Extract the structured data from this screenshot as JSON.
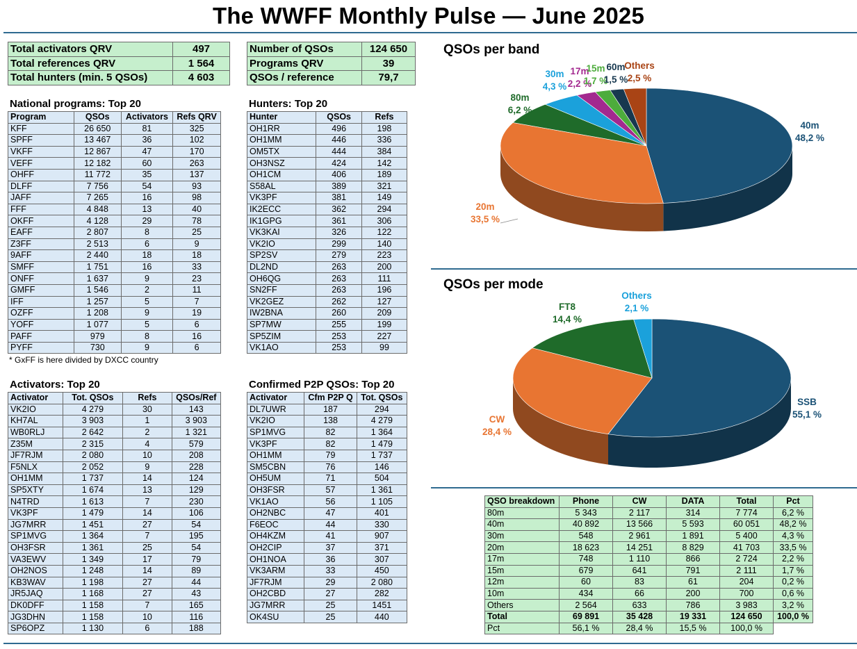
{
  "title": "The WWFF Monthly Pulse — June 2025",
  "summary_left": [
    {
      "label": "Total activators QRV",
      "value": "497"
    },
    {
      "label": "Total references QRV",
      "value": "1 564"
    },
    {
      "label": "Total hunters (min. 5 QSOs)",
      "value": "4 603"
    }
  ],
  "summary_right": [
    {
      "label": "Number of QSOs",
      "value": "124 650"
    },
    {
      "label": "Programs QRV",
      "value": "39"
    },
    {
      "label": "QSOs / reference",
      "value": "79,7"
    }
  ],
  "national": {
    "title": "National programs: Top 20",
    "headers": [
      "Program",
      "QSOs",
      "Activators",
      "Refs QRV"
    ],
    "rows": [
      [
        "KFF",
        "26 650",
        "81",
        "325"
      ],
      [
        "SPFF",
        "13 467",
        "36",
        "102"
      ],
      [
        "VKFF",
        "12 867",
        "47",
        "170"
      ],
      [
        "VEFF",
        "12 182",
        "60",
        "263"
      ],
      [
        "OHFF",
        "11 772",
        "35",
        "137"
      ],
      [
        "DLFF",
        "7 756",
        "54",
        "93"
      ],
      [
        "JAFF",
        "7 265",
        "16",
        "98"
      ],
      [
        "FFF",
        "4 848",
        "13",
        "40"
      ],
      [
        "OKFF",
        "4 128",
        "29",
        "78"
      ],
      [
        "EAFF",
        "2 807",
        "8",
        "25"
      ],
      [
        "Z3FF",
        "2 513",
        "6",
        "9"
      ],
      [
        "9AFF",
        "2 440",
        "18",
        "18"
      ],
      [
        "SMFF",
        "1 751",
        "16",
        "33"
      ],
      [
        "ONFF",
        "1 637",
        "9",
        "23"
      ],
      [
        "GMFF",
        "1 546",
        "2",
        "11"
      ],
      [
        "IFF",
        "1 257",
        "5",
        "7"
      ],
      [
        "OZFF",
        "1 208",
        "9",
        "19"
      ],
      [
        "YOFF",
        "1 077",
        "5",
        "6"
      ],
      [
        "PAFF",
        "979",
        "8",
        "16"
      ],
      [
        "PYFF",
        "730",
        "9",
        "6"
      ]
    ],
    "note": "* GxFF is here divided by DXCC country"
  },
  "hunters": {
    "title": "Hunters: Top 20",
    "headers": [
      "Hunter",
      "QSOs",
      "Refs"
    ],
    "rows": [
      [
        "OH1RR",
        "496",
        "198"
      ],
      [
        "OH1MM",
        "446",
        "336"
      ],
      [
        "OM5TX",
        "444",
        "384"
      ],
      [
        "OH3NSZ",
        "424",
        "142"
      ],
      [
        "OH1CM",
        "406",
        "189"
      ],
      [
        "S58AL",
        "389",
        "321"
      ],
      [
        "VK3PF",
        "381",
        "149"
      ],
      [
        "IK2ECC",
        "362",
        "294"
      ],
      [
        "IK1GPG",
        "361",
        "306"
      ],
      [
        "VK3KAI",
        "326",
        "122"
      ],
      [
        "VK2IO",
        "299",
        "140"
      ],
      [
        "SP2SV",
        "279",
        "223"
      ],
      [
        "DL2ND",
        "263",
        "200"
      ],
      [
        "OH6QG",
        "263",
        "111"
      ],
      [
        "SN2FF",
        "263",
        "196"
      ],
      [
        "VK2GEZ",
        "262",
        "127"
      ],
      [
        "IW2BNA",
        "260",
        "209"
      ],
      [
        "SP7MW",
        "255",
        "199"
      ],
      [
        "SP5ZIM",
        "253",
        "227"
      ],
      [
        "VK1AO",
        "253",
        "99"
      ]
    ]
  },
  "activators": {
    "title": "Activators: Top 20",
    "headers": [
      "Activator",
      "Tot. QSOs",
      "Refs",
      "QSOs/Ref"
    ],
    "rows": [
      [
        "VK2IO",
        "4 279",
        "30",
        "143"
      ],
      [
        "KH7AL",
        "3 903",
        "1",
        "3 903"
      ],
      [
        "WB0RLJ",
        "2 642",
        "2",
        "1 321"
      ],
      [
        "Z35M",
        "2 315",
        "4",
        "579"
      ],
      [
        "JF7RJM",
        "2 080",
        "10",
        "208"
      ],
      [
        "F5NLX",
        "2 052",
        "9",
        "228"
      ],
      [
        "OH1MM",
        "1 737",
        "14",
        "124"
      ],
      [
        "SP5XTY",
        "1 674",
        "13",
        "129"
      ],
      [
        "N4TRD",
        "1 613",
        "7",
        "230"
      ],
      [
        "VK3PF",
        "1 479",
        "14",
        "106"
      ],
      [
        "JG7MRR",
        "1 451",
        "27",
        "54"
      ],
      [
        "SP1MVG",
        "1 364",
        "7",
        "195"
      ],
      [
        "OH3FSR",
        "1 361",
        "25",
        "54"
      ],
      [
        "VA3EWV",
        "1 349",
        "17",
        "79"
      ],
      [
        "OH2NOS",
        "1 248",
        "14",
        "89"
      ],
      [
        "KB3WAV",
        "1 198",
        "27",
        "44"
      ],
      [
        "JR5JAQ",
        "1 168",
        "27",
        "43"
      ],
      [
        "DK0DFF",
        "1 158",
        "7",
        "165"
      ],
      [
        "JG3DHN",
        "1 158",
        "10",
        "116"
      ],
      [
        "SP6OPZ",
        "1 130",
        "6",
        "188"
      ]
    ]
  },
  "p2p": {
    "title": "Confirmed P2P QSOs: Top 20",
    "headers": [
      "Activator",
      "Cfm P2P Q",
      "Tot. QSOs"
    ],
    "rows": [
      [
        "DL7UWR",
        "187",
        "294"
      ],
      [
        "VK2IO",
        "138",
        "4 279"
      ],
      [
        "SP1MVG",
        "82",
        "1 364"
      ],
      [
        "VK3PF",
        "82",
        "1 479"
      ],
      [
        "OH1MM",
        "79",
        "1 737"
      ],
      [
        "SM5CBN",
        "76",
        "146"
      ],
      [
        "OH5UM",
        "71",
        "504"
      ],
      [
        "OH3FSR",
        "57",
        "1 361"
      ],
      [
        "VK1AO",
        "56",
        "1 105"
      ],
      [
        "OH2NBC",
        "47",
        "401"
      ],
      [
        "F6EOC",
        "44",
        "330"
      ],
      [
        "OH4KZM",
        "41",
        "907"
      ],
      [
        "OH2CIP",
        "37",
        "371"
      ],
      [
        "OH1NOA",
        "36",
        "307"
      ],
      [
        "VK3ARM",
        "33",
        "450"
      ],
      [
        "JF7RJM",
        "29",
        "2 080"
      ],
      [
        "OH2CBD",
        "27",
        "282"
      ],
      [
        "JG7MRR",
        "25",
        "1451"
      ],
      [
        "OK4SU",
        "25",
        "440"
      ]
    ]
  },
  "breakdown": {
    "headers": [
      "QSO breakdown",
      "Phone",
      "CW",
      "DATA",
      "Total",
      "Pct"
    ],
    "rows": [
      [
        "80m",
        "5 343",
        "2 117",
        "314",
        "7 774",
        "6,2 %"
      ],
      [
        "40m",
        "40 892",
        "13 566",
        "5 593",
        "60 051",
        "48,2 %"
      ],
      [
        "30m",
        "548",
        "2 961",
        "1 891",
        "5 400",
        "4,3 %"
      ],
      [
        "20m",
        "18 623",
        "14 251",
        "8 829",
        "41 703",
        "33,5 %"
      ],
      [
        "17m",
        "748",
        "1 110",
        "866",
        "2 724",
        "2,2 %"
      ],
      [
        "15m",
        "679",
        "641",
        "791",
        "2 111",
        "1,7 %"
      ],
      [
        "12m",
        "60",
        "83",
        "61",
        "204",
        "0,2 %"
      ],
      [
        "10m",
        "434",
        "66",
        "200",
        "700",
        "0,6 %"
      ],
      [
        "Others",
        "2 564",
        "633",
        "786",
        "3 983",
        "3,2 %"
      ]
    ],
    "total": [
      "Total",
      "69 891",
      "35 428",
      "19 331",
      "124 650",
      "100,0 %"
    ],
    "pct": [
      "Pct",
      "56,1 %",
      "28,4 %",
      "15,5 %",
      "100,0 %"
    ]
  },
  "chart_data": [
    {
      "type": "pie",
      "title": "QSOs per band",
      "slices": [
        {
          "label": "40m",
          "pct_label": "48,2 %",
          "value": 48.2,
          "color": "#1b5276",
          "label_color": "#1b5276"
        },
        {
          "label": "20m",
          "pct_label": "33,5 %",
          "value": 33.5,
          "color": "#e87532",
          "label_color": "#e87532"
        },
        {
          "label": "80m",
          "pct_label": "6,2 %",
          "value": 6.2,
          "color": "#1f6b2a",
          "label_color": "#1f6b2a"
        },
        {
          "label": "30m",
          "pct_label": "4,3 %",
          "value": 4.3,
          "color": "#1ba1db",
          "label_color": "#1ba1db"
        },
        {
          "label": "17m",
          "pct_label": "2,2 %",
          "value": 2.2,
          "color": "#a3298f",
          "label_color": "#a3298f"
        },
        {
          "label": "15m",
          "pct_label": "1,7 %",
          "value": 1.7,
          "color": "#4dac3c",
          "label_color": "#4dac3c"
        },
        {
          "label": "60m",
          "pct_label": "1,5 %",
          "value": 1.5,
          "color": "#17384f",
          "label_color": "#17384f"
        },
        {
          "label": "Others",
          "pct_label": "2,5 %",
          "value": 2.5,
          "color": "#a94415",
          "label_color": "#a94415"
        }
      ]
    },
    {
      "type": "pie",
      "title": "QSOs per mode",
      "slices": [
        {
          "label": "SSB",
          "pct_label": "55,1 %",
          "value": 55.1,
          "color": "#1b5276",
          "label_color": "#1b5276"
        },
        {
          "label": "CW",
          "pct_label": "28,4 %",
          "value": 28.4,
          "color": "#e87532",
          "label_color": "#e87532"
        },
        {
          "label": "FT8",
          "pct_label": "14,4 %",
          "value": 14.4,
          "color": "#1f6b2a",
          "label_color": "#1f6b2a"
        },
        {
          "label": "Others",
          "pct_label": "2,1 %",
          "value": 2.1,
          "color": "#1ba1db",
          "label_color": "#1ba1db"
        }
      ]
    }
  ]
}
